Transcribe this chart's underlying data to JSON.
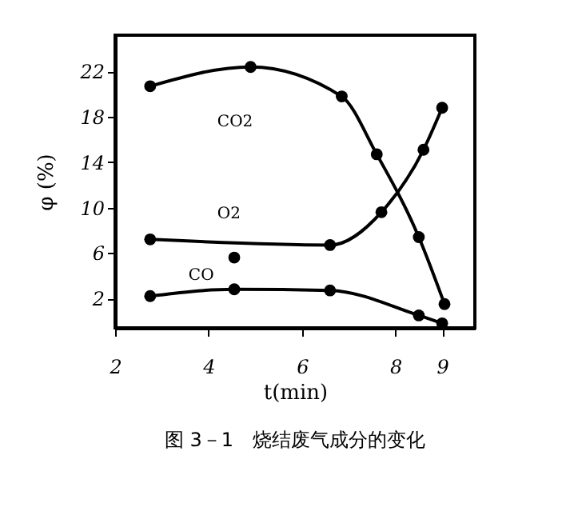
{
  "chart_data": {
    "type": "line",
    "title": "图 3－1　烧结废气成分的变化",
    "xlabel": "t(min)",
    "ylabel": "φ (%)",
    "xlim": [
      2,
      9.7
    ],
    "xticks": [
      2,
      4,
      6,
      8,
      9
    ],
    "ylim": [
      -0.6,
      25.2
    ],
    "yticks": [
      2,
      6,
      10,
      14,
      18,
      22
    ],
    "grid": false,
    "marker": "circle",
    "line_style": "solid",
    "series": [
      {
        "name": "CO2",
        "color": "#000000",
        "x": [
          2.75,
          4.9,
          6.85,
          7.6,
          8.5,
          9.05
        ],
        "values": [
          20.7,
          22.4,
          19.8,
          14.7,
          7.4,
          1.5
        ]
      },
      {
        "name": "O2",
        "color": "#000000",
        "x": [
          2.75,
          6.6,
          7.7,
          8.6,
          9.0
        ],
        "values": [
          7.2,
          6.7,
          9.6,
          15.1,
          18.8
        ]
      },
      {
        "name": "CO",
        "color": "#000000",
        "x": [
          2.75,
          4.55,
          6.6,
          8.5,
          9.0
        ],
        "values": [
          2.2,
          2.8,
          2.7,
          0.5,
          -0.2
        ]
      },
      {
        "type": "scatter",
        "color": "#000000",
        "x": [
          4.55
        ],
        "values": [
          5.6
        ]
      }
    ]
  }
}
